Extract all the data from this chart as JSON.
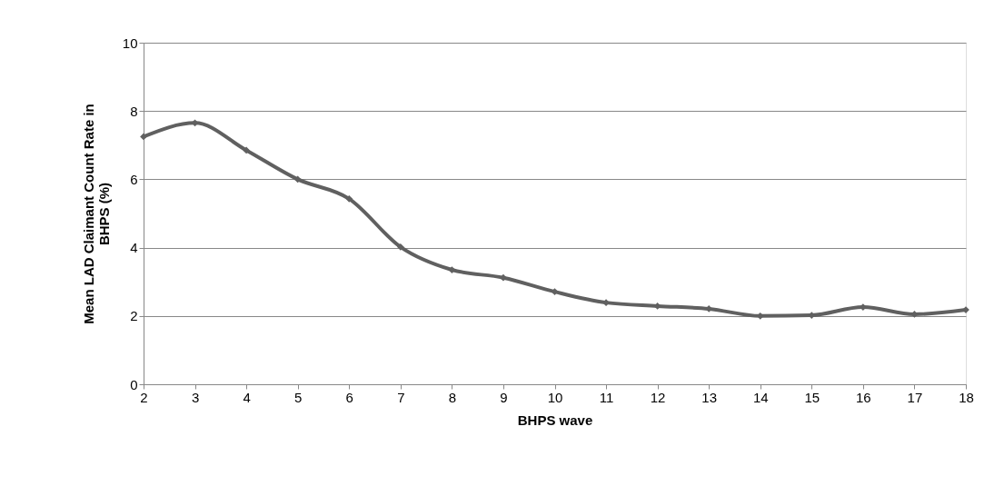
{
  "chart_data": {
    "type": "line",
    "xlabel": "BHPS wave",
    "ylabel": "Mean LAD Claimant Count Rate in BHPS (%)",
    "categories": [
      "2",
      "3",
      "4",
      "5",
      "6",
      "7",
      "8",
      "9",
      "10",
      "11",
      "12",
      "13",
      "14",
      "15",
      "16",
      "17",
      "18"
    ],
    "series": [
      {
        "color": "#606060",
        "values": [
          7.25,
          7.65,
          6.85,
          6.0,
          5.43,
          4.02,
          3.35,
          3.12,
          2.71,
          2.39,
          2.29,
          2.21,
          2.0,
          2.02,
          2.26,
          2.05,
          2.18
        ]
      }
    ],
    "ylim": [
      0,
      10
    ],
    "yticks": [
      0,
      2,
      4,
      6,
      8,
      10
    ],
    "grid": "y",
    "marker": "diamond",
    "line_style": "solid"
  }
}
